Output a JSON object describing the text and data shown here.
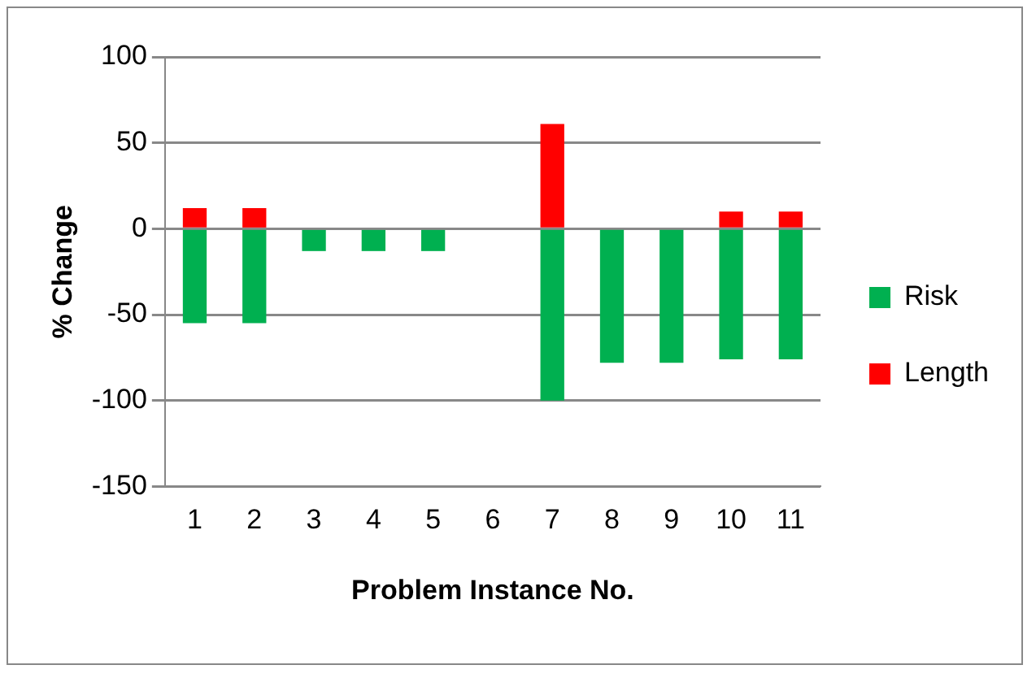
{
  "chart_data": {
    "type": "bar",
    "stacked": true,
    "xlabel": "Problem Instance No.",
    "ylabel": "% Change",
    "categories": [
      "1",
      "2",
      "3",
      "4",
      "5",
      "6",
      "7",
      "8",
      "9",
      "10",
      "11"
    ],
    "series": [
      {
        "name": "Risk",
        "color": "#00b050",
        "values": [
          -55,
          -55,
          -13,
          -13,
          -13,
          null,
          -100,
          -78,
          -78,
          -76,
          -76
        ]
      },
      {
        "name": "Length",
        "color": "#ff0000",
        "values": [
          12,
          12,
          null,
          null,
          null,
          null,
          61,
          0,
          0,
          10,
          10
        ]
      }
    ],
    "ylim": [
      -150,
      100
    ],
    "yticks": [
      -150,
      -100,
      -50,
      0,
      50,
      100
    ],
    "grid": "y",
    "legend": "right"
  }
}
